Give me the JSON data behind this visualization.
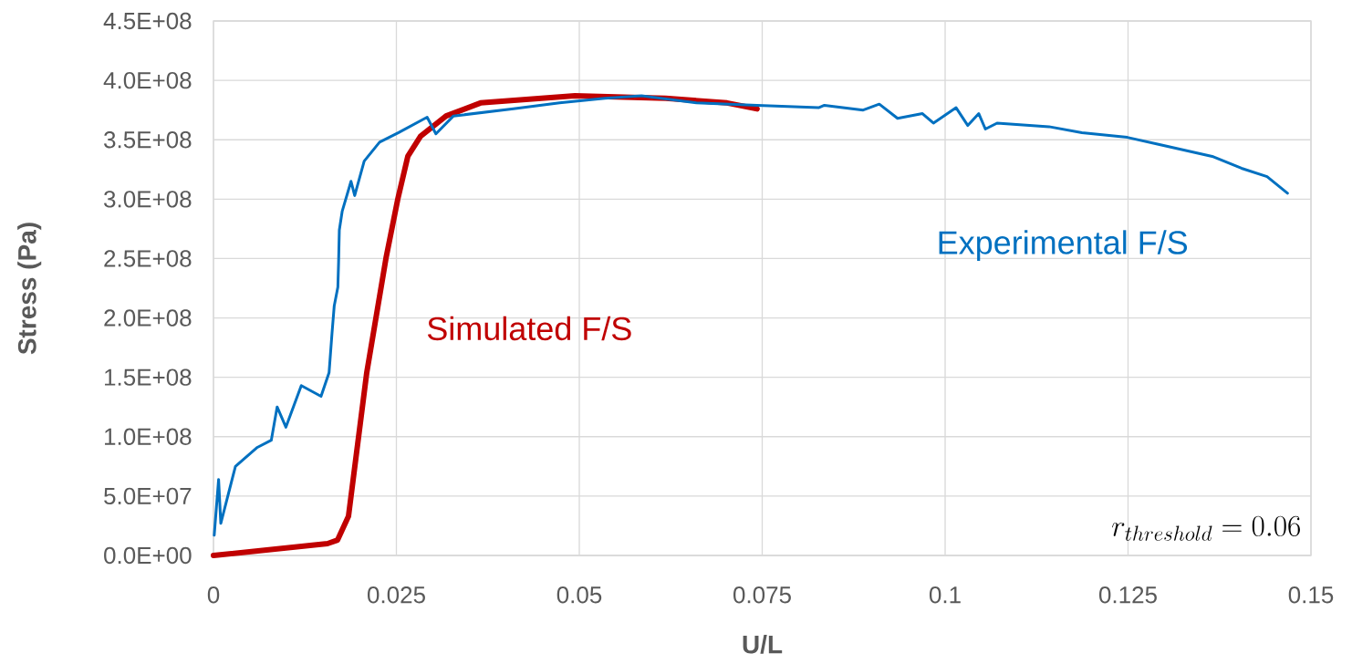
{
  "chart_data": {
    "type": "line",
    "xlabel": "U/L",
    "ylabel": "Stress (Pa)",
    "xlim": [
      0,
      0.15
    ],
    "xticks": [
      0,
      0.025,
      0.05,
      0.075,
      0.1,
      0.125,
      0.15
    ],
    "ylim": [
      0,
      450000000
    ],
    "yticks": [
      {
        "value": 0,
        "label": "0.0E+00"
      },
      {
        "value": 50000000,
        "label": "5.0E+07"
      },
      {
        "value": 100000000,
        "label": "1.0E+08"
      },
      {
        "value": 150000000,
        "label": "1.5E+08"
      },
      {
        "value": 200000000,
        "label": "2.0E+08"
      },
      {
        "value": 250000000,
        "label": "2.5E+08"
      },
      {
        "value": 300000000,
        "label": "3.0E+08"
      },
      {
        "value": 350000000,
        "label": "3.5E+08"
      },
      {
        "value": 400000000,
        "label": "4.0E+08"
      },
      {
        "value": 450000000,
        "label": "4.5E+08"
      }
    ],
    "grid": true,
    "annotations": [
      "r_{threshold} = 0.06"
    ],
    "series": [
      {
        "name": "Experimental F/S",
        "color": "#0070c0",
        "x": [
          0.0001,
          0.0007,
          0.001,
          0.003,
          0.006,
          0.0079,
          0.0087,
          0.0099,
          0.012,
          0.0147,
          0.0158,
          0.0162,
          0.0165,
          0.017,
          0.0171,
          0.0172,
          0.0176,
          0.0188,
          0.0193,
          0.0206,
          0.0227,
          0.0253,
          0.0292,
          0.0304,
          0.0328,
          0.041,
          0.0473,
          0.0535,
          0.0585,
          0.066,
          0.0743,
          0.0827,
          0.0835,
          0.0888,
          0.091,
          0.0935,
          0.0969,
          0.0984,
          0.1015,
          0.1031,
          0.1046,
          0.1055,
          0.1071,
          0.1142,
          0.1187,
          0.1249,
          0.1293,
          0.1365,
          0.1405,
          0.144,
          0.1468
        ],
        "values": [
          17000000,
          64000000,
          27000000,
          75000000,
          91000000,
          97000000,
          125000000,
          108000000,
          143000000,
          134000000,
          154000000,
          187000000,
          210000000,
          226000000,
          247000000,
          274000000,
          290000000,
          315000000,
          303000000,
          332000000,
          348000000,
          356000000,
          369000000,
          355000000,
          370000000,
          376000000,
          381000000,
          385000000,
          387000000,
          381000000,
          379000000,
          377000000,
          379000000,
          375000000,
          380000000,
          368000000,
          372000000,
          364000000,
          377000000,
          362000000,
          372000000,
          359000000,
          364000000,
          361000000,
          356000000,
          352000000,
          346000000,
          336000000,
          326000000,
          319000000,
          305000000
        ]
      },
      {
        "name": "Simulated F/S",
        "color": "#c00000",
        "x": [
          0,
          0.01559,
          0.01696,
          0.01845,
          0.02095,
          0.02357,
          0.02519,
          0.02656,
          0.0283,
          0.0318,
          0.0365,
          0.0494,
          0.0618,
          0.0702,
          0.0743
        ],
        "values": [
          0,
          10000000,
          13000000,
          33000000,
          154000000,
          250000000,
          300000000,
          336000000,
          353000000,
          370000000,
          381000000,
          387000000,
          385000000,
          381000000,
          376000000
        ]
      }
    ]
  }
}
